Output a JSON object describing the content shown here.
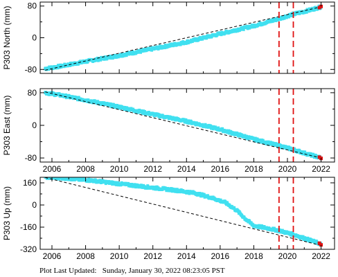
{
  "chart_data": [
    {
      "type": "scatter",
      "ylabel": "P303 North (mm)",
      "xlim": [
        2005.3,
        2022.8
      ],
      "ylim": [
        -90,
        90
      ],
      "xticks": [
        2006,
        2008,
        2010,
        2012,
        2014,
        2016,
        2018,
        2020,
        2022
      ],
      "yticks": [
        -80,
        0,
        80
      ],
      "show_xtick_labels": false,
      "series": [
        {
          "kind": "observed",
          "color": "#40e0f0",
          "x": [
            2005.6,
            2006.5,
            2008,
            2010,
            2012,
            2014,
            2016,
            2018,
            2019.5,
            2020.4,
            2021,
            2022
          ],
          "y": [
            -78,
            -72,
            -60,
            -45,
            -28,
            -11,
            10,
            30,
            48,
            60,
            66,
            78
          ]
        },
        {
          "kind": "trend",
          "color": "#000000",
          "style": "dashed",
          "x": [
            2005.6,
            2022
          ],
          "y": [
            -82,
            78
          ]
        },
        {
          "kind": "recent",
          "color": "#e01010",
          "x": [
            2021.9,
            2022
          ],
          "y": [
            76,
            79
          ]
        }
      ],
      "vlines": [
        {
          "x": 2019.5,
          "color": "#e01010"
        },
        {
          "x": 2020.35,
          "color": "#e01010"
        }
      ]
    },
    {
      "type": "scatter",
      "ylabel": "P303 East (mm)",
      "xlim": [
        2005.3,
        2022.8
      ],
      "ylim": [
        -90,
        90
      ],
      "xticks": [
        2006,
        2008,
        2010,
        2012,
        2014,
        2016,
        2018,
        2020,
        2022
      ],
      "yticks": [
        -80,
        0,
        80
      ],
      "show_xtick_labels": true,
      "series": [
        {
          "kind": "observed",
          "color": "#40e0f0",
          "x": [
            2005.6,
            2006.5,
            2008,
            2010,
            2012,
            2014,
            2016,
            2018,
            2019.5,
            2020.4,
            2021,
            2022
          ],
          "y": [
            80,
            74,
            62,
            45,
            27,
            10,
            -10,
            -34,
            -50,
            -60,
            -68,
            -80
          ]
        },
        {
          "kind": "trend",
          "color": "#000000",
          "style": "dashed",
          "x": [
            2005.6,
            2022
          ],
          "y": [
            82,
            -80
          ]
        },
        {
          "kind": "recent",
          "color": "#e01010",
          "x": [
            2021.9,
            2022
          ],
          "y": [
            -78,
            -81
          ]
        }
      ],
      "vlines": [
        {
          "x": 2019.5,
          "color": "#e01010"
        },
        {
          "x": 2020.35,
          "color": "#e01010"
        }
      ]
    },
    {
      "type": "scatter",
      "ylabel": "P303 Up (mm)",
      "xlim": [
        2005.3,
        2022.8
      ],
      "ylim": [
        -320,
        200
      ],
      "xticks": [
        2006,
        2008,
        2010,
        2012,
        2014,
        2016,
        2018,
        2020,
        2022
      ],
      "yticks": [
        -320,
        -160,
        0,
        160
      ],
      "show_xtick_labels": true,
      "series": [
        {
          "kind": "observed",
          "color": "#40e0f0",
          "x": [
            2005.6,
            2006.5,
            2007.5,
            2008.5,
            2009.5,
            2010.5,
            2011.5,
            2012.5,
            2013.5,
            2014.5,
            2015.5,
            2016.3,
            2017,
            2017.5,
            2018,
            2018.7,
            2019.5,
            2020.4,
            2021,
            2022
          ],
          "y": [
            200,
            196,
            186,
            175,
            160,
            146,
            132,
            118,
            104,
            86,
            52,
            18,
            -40,
            -100,
            -150,
            -165,
            -185,
            -215,
            -240,
            -282
          ]
        },
        {
          "kind": "trend",
          "color": "#000000",
          "style": "dashed",
          "x": [
            2005.6,
            2022
          ],
          "y": [
            198,
            -292
          ]
        },
        {
          "kind": "recent",
          "color": "#e01010",
          "x": [
            2021.9,
            2022
          ],
          "y": [
            -276,
            -288
          ]
        }
      ],
      "vlines": [
        {
          "x": 2019.5,
          "color": "#e01010"
        },
        {
          "x": 2020.35,
          "color": "#e01010"
        }
      ]
    }
  ],
  "footer": {
    "label": "Plot Last Updated:",
    "value": "Sunday, January 30, 2022 08:23:05 PST"
  }
}
